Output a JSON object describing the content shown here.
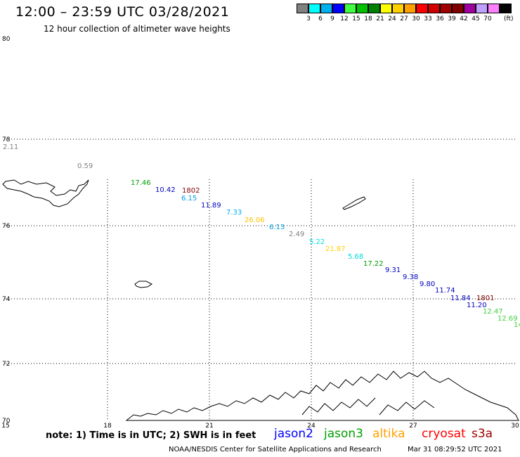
{
  "header": {
    "title": "12:00 – 23:59 UTC 03/28/2021",
    "subtitle": "12 hour collection of altimeter wave heights"
  },
  "colorbar": {
    "colors": [
      "#808080",
      "#00ffff",
      "#00b0f0",
      "#0000ff",
      "#40ff40",
      "#00c000",
      "#008000",
      "#ffff00",
      "#ffd000",
      "#ffa000",
      "#ff0000",
      "#d00000",
      "#a00000",
      "#800000",
      "#a000a0",
      "#c0a0ff",
      "#ff80ff",
      "#000000"
    ],
    "ticks": [
      "3",
      "6",
      "9",
      "12",
      "15",
      "18",
      "21",
      "24",
      "27",
      "30",
      "33",
      "36",
      "39",
      "42",
      "45",
      "70"
    ],
    "unit": "(ft)"
  },
  "map": {
    "lat_labels": [
      "80",
      "78",
      "76",
      "74",
      "72",
      "70"
    ],
    "lon_labels": [
      "15",
      "18",
      "21",
      "24",
      "27",
      "30"
    ]
  },
  "measurements": [
    {
      "value": "2.11",
      "color": "#808080"
    },
    {
      "value": "0.59",
      "color": "#808080"
    },
    {
      "value": "17.46",
      "color": "#00a000"
    },
    {
      "value": "10.42",
      "color": "#0000c0"
    },
    {
      "value": "1802",
      "color": "#800000"
    },
    {
      "value": "6.15",
      "color": "#00a0e0"
    },
    {
      "value": "11.89",
      "color": "#0000c0"
    },
    {
      "value": "7.33",
      "color": "#00b0f0"
    },
    {
      "value": "26.06",
      "color": "#ffc000"
    },
    {
      "value": "6.13",
      "color": "#00a0e0"
    },
    {
      "value": "2.49",
      "color": "#808080"
    },
    {
      "value": "5.22",
      "color": "#00e0e0"
    },
    {
      "value": "21.87",
      "color": "#ffd000"
    },
    {
      "value": "5.68",
      "color": "#00d8d8"
    },
    {
      "value": "17.22",
      "color": "#00a000"
    },
    {
      "value": "9.31",
      "color": "#0000c0"
    },
    {
      "value": "9.38",
      "color": "#0000c0"
    },
    {
      "value": "9.80",
      "color": "#0000c0"
    },
    {
      "value": "11.74",
      "color": "#0000c0"
    },
    {
      "value": "11.84",
      "color": "#0000c0"
    },
    {
      "value": "1801",
      "color": "#800000"
    },
    {
      "value": "11.20",
      "color": "#0000c0"
    },
    {
      "value": "12.47",
      "color": "#40d040"
    },
    {
      "value": "12.69",
      "color": "#40d040"
    },
    {
      "value": "14",
      "color": "#40d040"
    }
  ],
  "footer": {
    "note": "note: 1) Time is in UTC; 2) SWH is in feet",
    "satellites": [
      {
        "name": "jason2",
        "color": "#0000ff"
      },
      {
        "name": "jason3",
        "color": "#00a000"
      },
      {
        "name": "altika",
        "color": "#ffa000"
      },
      {
        "name": "cryosat",
        "color": "#ff0000"
      },
      {
        "name": "s3a",
        "color": "#a00000"
      }
    ],
    "credit": "NOAA/NESDIS Center for Satellite Applications and Research",
    "date": "Mar 31 08:29:52 UTC 2021"
  }
}
